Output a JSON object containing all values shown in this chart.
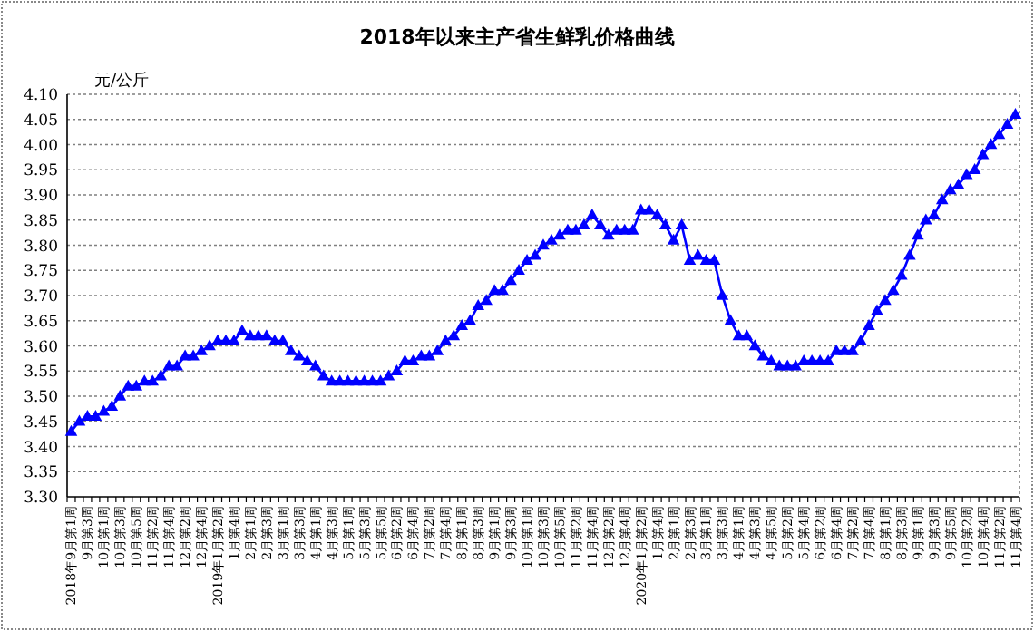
{
  "chart_data": {
    "type": "line",
    "title": "2018年以来主产省生鲜乳价格曲线",
    "ylabel": "元/公斤",
    "categories": [
      "2018年9月第1周",
      null,
      "9月第3周",
      null,
      "10月第1周",
      null,
      "10月第3周",
      null,
      "10月第5周",
      null,
      "11月第2周",
      null,
      "11月第4周",
      null,
      "12月第2周",
      null,
      "12月第4周",
      null,
      "2019年1月第2周",
      null,
      "1月第4周",
      null,
      "2月第1周",
      null,
      "2月第3周",
      null,
      "3月第1周",
      null,
      "3月第3周",
      null,
      "4月第1周",
      null,
      "4月第3周",
      null,
      "5月第1周",
      null,
      "5月第3周",
      null,
      "5月第5周",
      null,
      "6月第2周",
      null,
      "6月第4周",
      null,
      "7月第2周",
      null,
      "7月第4周",
      null,
      "8月第1周",
      null,
      "8月第3周",
      null,
      "9月第1周",
      null,
      "9月第3周",
      null,
      "10月第1周",
      null,
      "10月第3周",
      null,
      "10月第5周",
      null,
      "11月第2周",
      null,
      "11月第4周",
      null,
      "12月第2周",
      null,
      "12月第4周",
      null,
      "2020年1月第2周",
      null,
      "1月第4周",
      null,
      "2月第1周",
      null,
      "2月第3周",
      null,
      "3月第1周",
      null,
      "3月第3周",
      null,
      "4月第1周",
      null,
      "4月第3周",
      null,
      "4月第5周",
      null,
      "5月第2周",
      null,
      "5月第4周",
      null,
      "6月第2周",
      null,
      "6月第4周",
      null,
      "7月第2周",
      null,
      "7月第4周",
      null,
      "8月第1周",
      null,
      "8月第3周",
      null,
      "9月第1周",
      null,
      "9月第3周",
      null,
      "9月第5周",
      null,
      "10月第2周",
      null,
      "10月第4周",
      null,
      "11月第2周",
      null,
      "11月第4周"
    ],
    "series": [
      {
        "color": "#0000ff",
        "values": [
          3.43,
          3.45,
          3.46,
          3.46,
          3.47,
          3.48,
          3.5,
          3.52,
          3.52,
          3.53,
          3.53,
          3.54,
          3.56,
          3.56,
          3.58,
          3.58,
          3.59,
          3.6,
          3.61,
          3.61,
          3.61,
          3.63,
          3.62,
          3.62,
          3.62,
          3.61,
          3.61,
          3.59,
          3.58,
          3.57,
          3.56,
          3.54,
          3.53,
          3.53,
          3.53,
          3.53,
          3.53,
          3.53,
          3.53,
          3.54,
          3.55,
          3.57,
          3.57,
          3.58,
          3.58,
          3.59,
          3.61,
          3.62,
          3.64,
          3.65,
          3.68,
          3.69,
          3.71,
          3.71,
          3.73,
          3.75,
          3.77,
          3.78,
          3.8,
          3.81,
          3.82,
          3.83,
          3.83,
          3.84,
          3.86,
          3.84,
          3.82,
          3.83,
          3.83,
          3.83,
          3.87,
          3.87,
          3.86,
          3.84,
          3.81,
          3.84,
          3.77,
          3.78,
          3.77,
          3.77,
          3.7,
          3.65,
          3.62,
          3.62,
          3.6,
          3.58,
          3.57,
          3.56,
          3.56,
          3.56,
          3.57,
          3.57,
          3.57,
          3.57,
          3.59,
          3.59,
          3.59,
          3.61,
          3.64,
          3.67,
          3.69,
          3.71,
          3.74,
          3.78,
          3.82,
          3.85,
          3.86,
          3.89,
          3.91,
          3.92,
          3.94,
          3.95,
          3.98,
          4.0,
          4.02,
          4.04,
          4.06
        ]
      }
    ],
    "ylim": [
      3.3,
      4.1
    ],
    "yticks": [
      {
        "value": 3.3,
        "label": "3.30"
      },
      {
        "value": 3.35,
        "label": "3.35"
      },
      {
        "value": 3.4,
        "label": "3.40"
      },
      {
        "value": 3.45,
        "label": "3.45"
      },
      {
        "value": 3.5,
        "label": "3.50"
      },
      {
        "value": 3.55,
        "label": "3.55"
      },
      {
        "value": 3.6,
        "label": "3.60"
      },
      {
        "value": 3.65,
        "label": "3.65"
      },
      {
        "value": 3.7,
        "label": "3.70"
      },
      {
        "value": 3.75,
        "label": "3.75"
      },
      {
        "value": 3.8,
        "label": "3.80"
      },
      {
        "value": 3.85,
        "label": "3.85"
      },
      {
        "value": 3.9,
        "label": "3.90"
      },
      {
        "value": 3.95,
        "label": "3.95"
      },
      {
        "value": 4.0,
        "label": "4.00"
      },
      {
        "value": 4.05,
        "label": "4.05"
      },
      {
        "value": 4.1,
        "label": "4.10"
      }
    ],
    "grid": "y",
    "marker": "triangle"
  }
}
